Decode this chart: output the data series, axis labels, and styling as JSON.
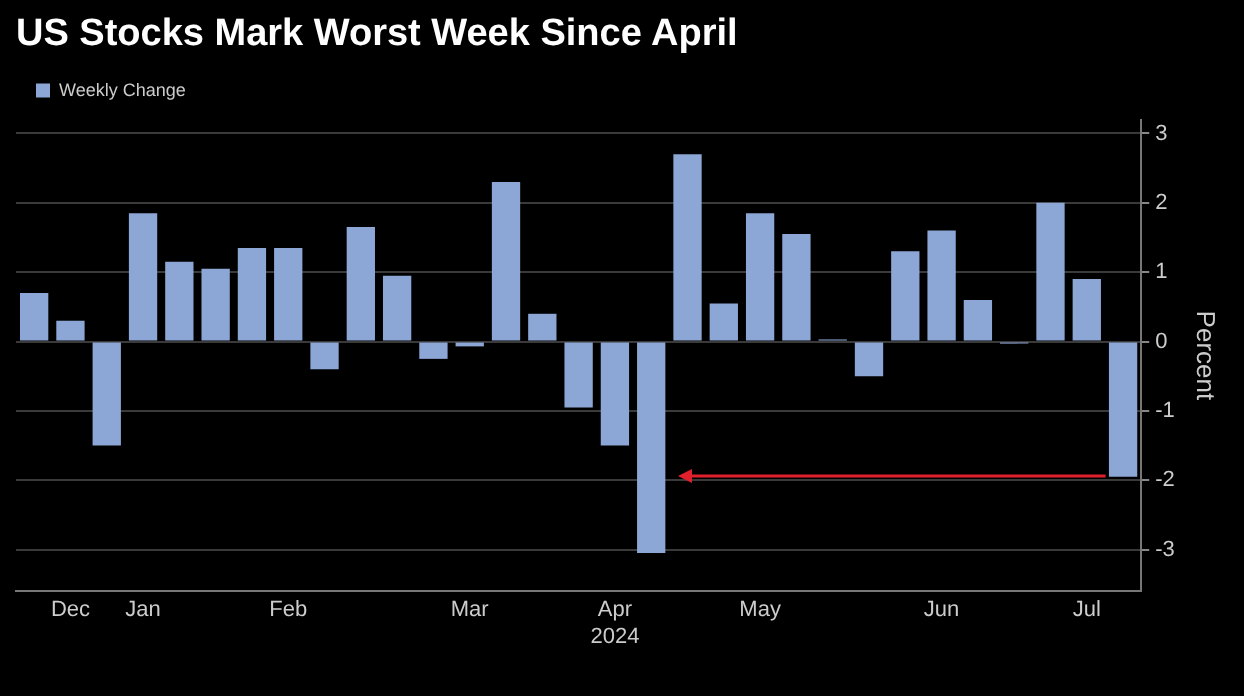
{
  "chart_data": {
    "type": "bar",
    "title": "US Stocks Mark Worst Week Since April",
    "ylabel": "Percent",
    "categories": [
      null,
      "Dec",
      null,
      "Jan",
      null,
      null,
      null,
      "Feb",
      null,
      null,
      null,
      null,
      "Mar",
      null,
      null,
      null,
      "Apr\n2024",
      null,
      null,
      null,
      "May",
      null,
      null,
      null,
      null,
      "Jun",
      null,
      null,
      null,
      "Jul",
      null
    ],
    "series": [
      {
        "name": "Weekly Change",
        "color": "#8ca6d6",
        "values": [
          0.7,
          0.3,
          -1.5,
          1.85,
          1.15,
          1.05,
          1.35,
          1.35,
          -0.4,
          1.65,
          0.95,
          -0.25,
          -0.07,
          2.3,
          0.4,
          -0.95,
          -1.5,
          -3.05,
          2.7,
          0.55,
          1.85,
          1.55,
          0.03,
          -0.5,
          1.3,
          1.6,
          0.6,
          -0.03,
          2.0,
          0.9,
          -1.95
        ]
      }
    ],
    "ylim": [
      -3.6,
      3.2
    ],
    "yticks": [
      -3,
      -2,
      -1,
      0,
      1,
      2,
      3
    ],
    "grid": "y",
    "legend": "top left"
  }
}
